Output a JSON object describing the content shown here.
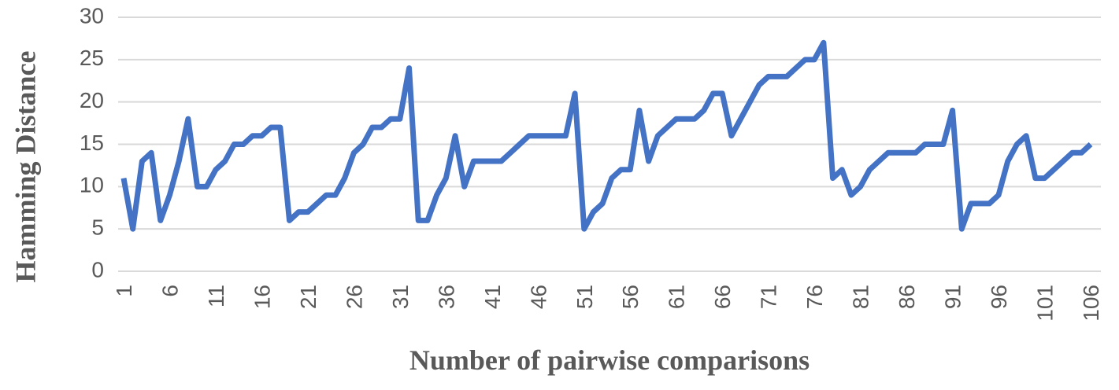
{
  "chart_data": {
    "type": "line",
    "x_label": "Number of pairwise comparisons",
    "y_label": "Hamming Distance",
    "categories": [
      "1",
      null,
      null,
      null,
      null,
      "6",
      null,
      null,
      null,
      null,
      "11",
      null,
      null,
      null,
      null,
      "16",
      null,
      null,
      null,
      null,
      "21",
      null,
      null,
      null,
      null,
      "26",
      null,
      null,
      null,
      null,
      "31",
      null,
      null,
      null,
      null,
      "36",
      null,
      null,
      null,
      null,
      "41",
      null,
      null,
      null,
      null,
      "46",
      null,
      null,
      null,
      null,
      "51",
      null,
      null,
      null,
      null,
      "56",
      null,
      null,
      null,
      null,
      "61",
      null,
      null,
      null,
      null,
      "66",
      null,
      null,
      null,
      null,
      "71",
      null,
      null,
      null,
      null,
      "76",
      null,
      null,
      null,
      null,
      "81",
      null,
      null,
      null,
      null,
      "86",
      null,
      null,
      null,
      null,
      "91",
      null,
      null,
      null,
      null,
      "96",
      null,
      null,
      null,
      null,
      "101",
      null,
      null,
      null,
      null,
      "106"
    ],
    "series": [
      {
        "color": "#4472c4",
        "values": [
          11,
          5,
          13,
          14,
          6,
          9,
          13,
          18,
          10,
          10,
          12,
          13,
          15,
          15,
          16,
          16,
          17,
          17,
          6,
          7,
          7,
          8,
          9,
          9,
          11,
          14,
          15,
          17,
          17,
          18,
          18,
          24,
          6,
          6,
          9,
          11,
          16,
          10,
          13,
          13,
          13,
          13,
          14,
          15,
          16,
          16,
          16,
          16,
          16,
          21,
          5,
          7,
          8,
          11,
          12,
          12,
          19,
          13,
          16,
          17,
          18,
          18,
          18,
          19,
          21,
          21,
          16,
          18,
          20,
          22,
          23,
          23,
          23,
          24,
          25,
          25,
          27,
          11,
          12,
          9,
          10,
          12,
          13,
          14,
          14,
          14,
          14,
          15,
          15,
          15,
          19,
          5,
          8,
          8,
          8,
          9,
          13,
          15,
          16,
          11,
          11,
          12,
          13,
          14,
          14,
          15
        ]
      }
    ],
    "ylim": [
      0,
      30
    ],
    "yticks": [
      0,
      5,
      10,
      15,
      20,
      25,
      30
    ],
    "grid": true
  }
}
